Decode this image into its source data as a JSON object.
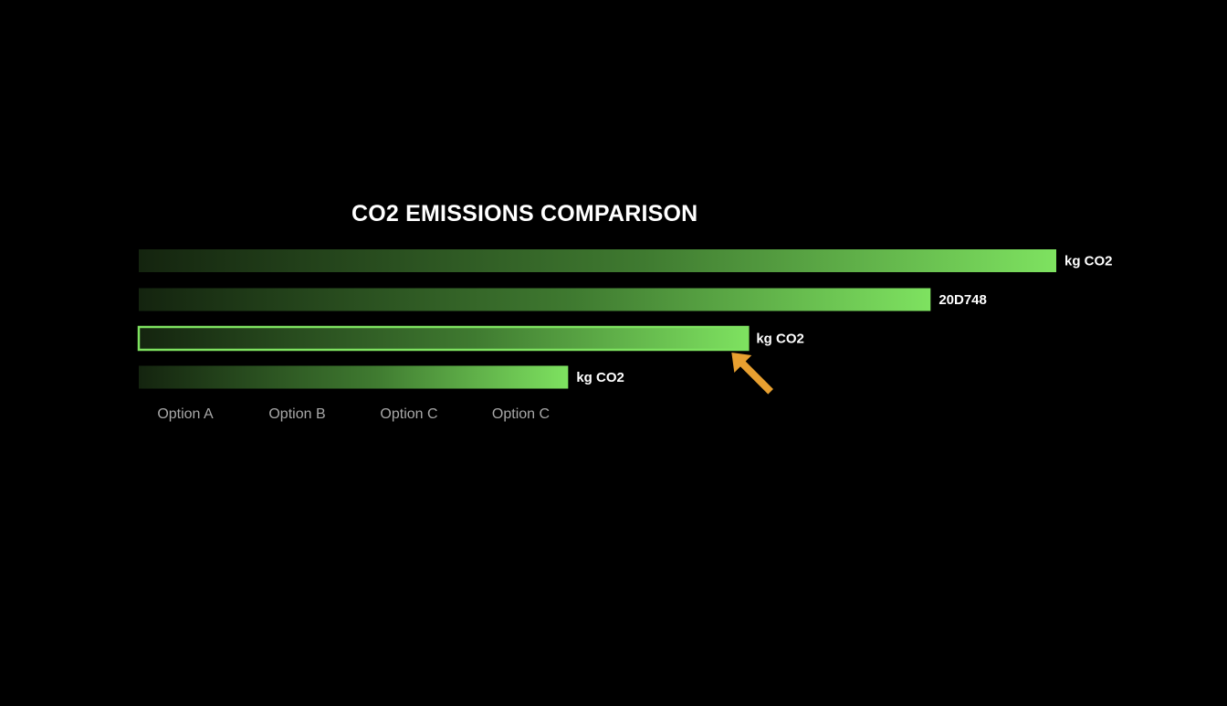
{
  "chart_data": {
    "type": "bar",
    "orientation": "horizontal",
    "title": "CO2 EMISSIONS COMPARISON",
    "categories": [
      "Option A",
      "Option B",
      "Option C",
      "Option C"
    ],
    "values": [
      100,
      86.3,
      66.4,
      46.8
    ],
    "data_labels": [
      "kg CO2",
      "20D748",
      "kg CO2",
      "kg CO2"
    ],
    "highlighted_index": 2,
    "xlim": [
      0,
      100
    ],
    "grid": false,
    "legend": "none",
    "colors": {
      "background": "#000000",
      "bar_start": "#14240f",
      "bar_mid": "#3f7a30",
      "bar_end": "#7ee260",
      "highlight_outline": "#7ee260",
      "label_text": "#ffffff",
      "category_text": "#a8a8a8",
      "pointer": "#e8a030"
    },
    "annotation": {
      "icon": "pointer-arrow-icon",
      "target_index": 2
    }
  }
}
